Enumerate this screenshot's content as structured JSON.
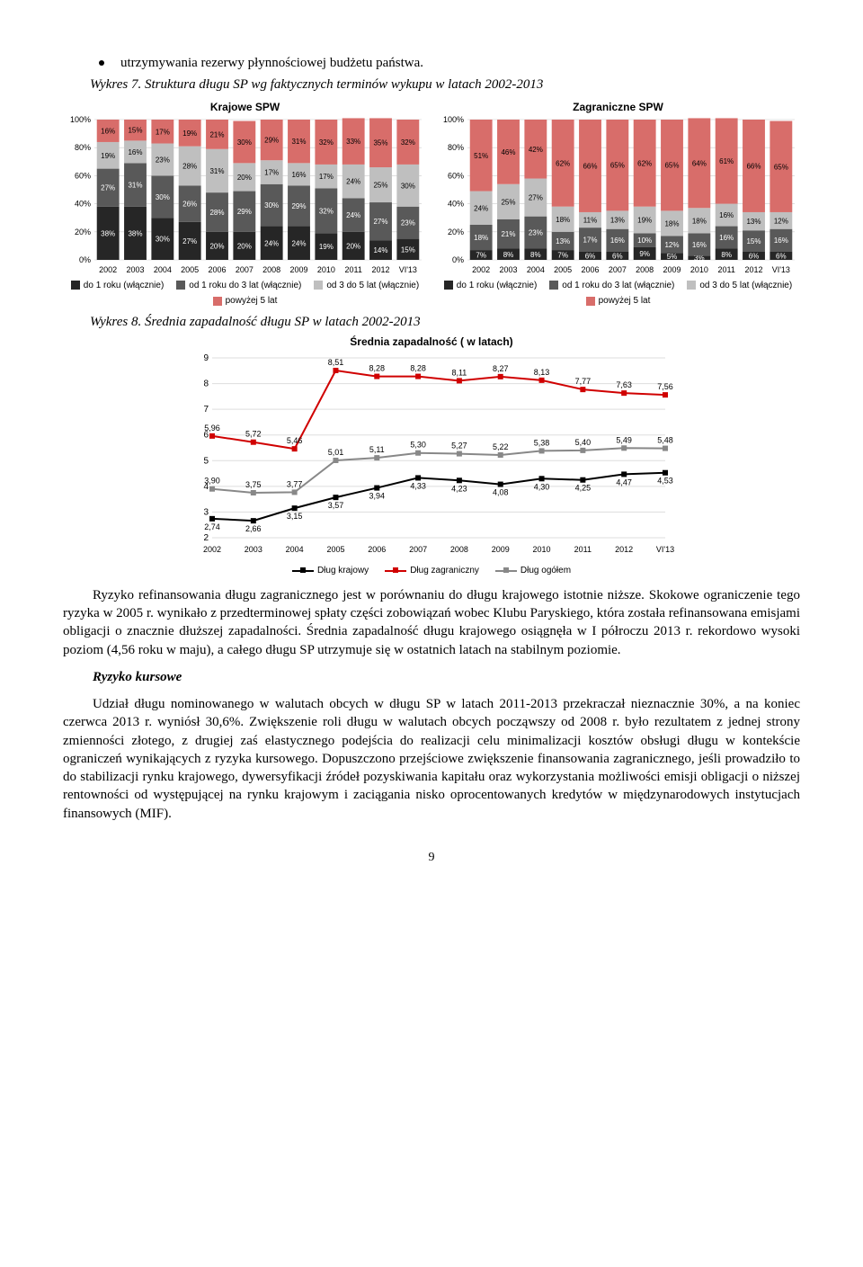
{
  "bullet_text": "utrzymywania rezerwy płynnościowej budżetu państwa.",
  "fig7_caption": "Wykres 7. Struktura długu SP wg faktycznych terminów wykupu w latach 2002-2013",
  "fig8_caption": "Wykres 8. Średnia zapadalność długu SP w latach 2002-2013",
  "chart_left": {
    "title": "Krajowe SPW",
    "categories": [
      "2002",
      "2003",
      "2004",
      "2005",
      "2006",
      "2007",
      "2008",
      "2009",
      "2010",
      "2011",
      "2012",
      "VI'13"
    ],
    "series_names": [
      "do 1 roku (włącznie)",
      "od 1 roku do 3 lat (włącznie)",
      "od 3 do 5 lat (włącznie)",
      "powyżej 5 lat"
    ],
    "colors": [
      "#262626",
      "#595959",
      "#bfbfbf",
      "#d86d6a"
    ],
    "stacks": [
      [
        38,
        27,
        19,
        16
      ],
      [
        38,
        31,
        16,
        15
      ],
      [
        30,
        30,
        23,
        17
      ],
      [
        27,
        26,
        28,
        19
      ],
      [
        20,
        28,
        31,
        21
      ],
      [
        20,
        29,
        20,
        30
      ],
      [
        24,
        30,
        17,
        29
      ],
      [
        24,
        29,
        16,
        31
      ],
      [
        19,
        32,
        17,
        32
      ],
      [
        20,
        24,
        24,
        33
      ],
      [
        14,
        27,
        25,
        35
      ],
      [
        15,
        23,
        30,
        32
      ]
    ],
    "yticks": [
      0,
      20,
      40,
      60,
      80,
      100
    ]
  },
  "chart_right": {
    "title": "Zagraniczne SPW",
    "categories": [
      "2002",
      "2003",
      "2004",
      "2005",
      "2006",
      "2007",
      "2008",
      "2009",
      "2010",
      "2011",
      "2012",
      "VI'13"
    ],
    "series_names": [
      "do 1 roku (włącznie)",
      "od 1 roku do 3 lat (włącznie)",
      "od 3 do 5 lat (włącznie)",
      "powyżej 5 lat"
    ],
    "colors": [
      "#262626",
      "#595959",
      "#bfbfbf",
      "#d86d6a"
    ],
    "stacks": [
      [
        7,
        18,
        24,
        51
      ],
      [
        8,
        21,
        25,
        46
      ],
      [
        8,
        23,
        27,
        42
      ],
      [
        7,
        13,
        18,
        62
      ],
      [
        6,
        17,
        11,
        66
      ],
      [
        6,
        16,
        13,
        65
      ],
      [
        9,
        10,
        19,
        62
      ],
      [
        5,
        12,
        18,
        65
      ],
      [
        3,
        16,
        18,
        64
      ],
      [
        8,
        16,
        16,
        61
      ],
      [
        6,
        15,
        13,
        66
      ],
      [
        6,
        16,
        12,
        65
      ]
    ],
    "yticks": [
      0,
      20,
      40,
      60,
      80,
      100
    ]
  },
  "line_chart": {
    "title": "Średnia zapadalność ( w latach)",
    "categories": [
      "2002",
      "2003",
      "2004",
      "2005",
      "2006",
      "2007",
      "2008",
      "2009",
      "2010",
      "2011",
      "2012",
      "VI'13"
    ],
    "yticks": [
      2,
      3,
      4,
      5,
      6,
      7,
      8,
      9
    ],
    "series": [
      {
        "name": "Dług krajowy",
        "color": "#000000",
        "values": [
          2.74,
          2.66,
          3.15,
          3.57,
          3.94,
          4.33,
          4.23,
          4.08,
          4.3,
          4.25,
          4.47,
          4.53
        ]
      },
      {
        "name": "Dług zagraniczny",
        "color": "#d00000",
        "values": [
          5.96,
          5.72,
          5.46,
          8.51,
          8.28,
          8.28,
          8.11,
          8.27,
          8.13,
          7.77,
          7.63,
          7.56
        ]
      },
      {
        "name": "Dług ogółem",
        "color": "#888888",
        "values": [
          3.9,
          3.75,
          3.77,
          5.01,
          5.11,
          5.3,
          5.27,
          5.22,
          5.38,
          5.4,
          5.49,
          5.48
        ]
      }
    ]
  },
  "para1": "Ryzyko refinansowania długu zagranicznego jest w porównaniu do długu krajowego istotnie niższe. Skokowe ograniczenie tego ryzyka w 2005 r. wynikało z przedterminowej spłaty części zobowiązań wobec Klubu Paryskiego, która została refinansowana emisjami obligacji o znacznie dłuższej zapadalności. Średnia zapadalność długu krajowego osiągnęła w I półroczu 2013 r. rekordowo wysoki poziom (4,56 roku w maju), a całego długu SP utrzymuje się w ostatnich latach na stabilnym poziomie.",
  "sub_header": "Ryzyko kursowe",
  "para2": "Udział długu nominowanego w walutach obcych w długu SP w latach 2011-2013 przekraczał nieznacznie 30%, a na koniec czerwca 2013 r. wyniósł 30,6%. Zwiększenie roli długu w walutach obcych począwszy od 2008 r. było rezultatem z jednej strony zmienności złotego, z drugiej zaś elastycznego podejścia do realizacji celu minimalizacji kosztów obsługi długu w kontekście ograniczeń wynikających z ryzyka kursowego. Dopuszczono przejściowe zwiększenie finansowania zagranicznego, jeśli prowadziło to do stabilizacji rynku krajowego, dywersyfikacji źródeł pozyskiwania kapitału oraz wykorzystania możliwości emisji obligacji o niższej rentowności od występującej na rynku krajowym i zaciągania nisko oprocentowanych kredytów w międzynarodowych instytucjach finansowych (MIF).",
  "page_number": "9"
}
